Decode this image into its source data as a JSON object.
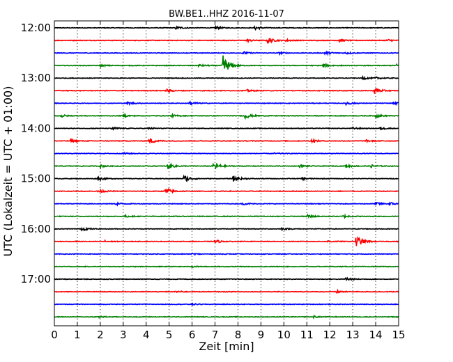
{
  "chart_data": {
    "type": "line",
    "title": "BW.BE1..HHZ 2016-11-07",
    "xlabel": "Zeit  [min]",
    "ylabel": "UTC (Lokalzeit = UTC + 01:00)",
    "xlim": [
      0,
      15
    ],
    "x_ticks": [
      0,
      1,
      2,
      3,
      4,
      5,
      6,
      7,
      8,
      9,
      10,
      11,
      12,
      13,
      14,
      15
    ],
    "x_tick_labels": [
      "0",
      "1",
      "2",
      "3",
      "4",
      "5",
      "6",
      "7",
      "8",
      "9",
      "10",
      "11",
      "12",
      "13",
      "14",
      "15"
    ],
    "y_tick_labels": [
      "12:00",
      "13:00",
      "14:00",
      "15:00",
      "16:00",
      "17:00"
    ],
    "grid": true,
    "colors": [
      "#000000",
      "#ff0000",
      "#0000ff",
      "#008000"
    ],
    "traces": [
      {
        "start": "12:00",
        "color": "#000000",
        "events": [
          {
            "t": 5.3,
            "amp": 0.25
          },
          {
            "t": 7.0,
            "amp": 0.25
          },
          {
            "t": 8.75,
            "amp": 0.3
          }
        ]
      },
      {
        "start": "12:15",
        "color": "#ff0000",
        "events": [
          {
            "t": 8.4,
            "amp": 0.2
          },
          {
            "t": 9.3,
            "amp": 0.45
          },
          {
            "t": 10.1,
            "amp": 0.15
          },
          {
            "t": 12.4,
            "amp": 0.2
          },
          {
            "t": 14.5,
            "amp": 0.2
          }
        ]
      },
      {
        "start": "12:30",
        "color": "#0000ff",
        "events": [
          {
            "t": 8.2,
            "amp": 0.25
          },
          {
            "t": 9.8,
            "amp": 0.15
          },
          {
            "t": 11.8,
            "amp": 0.3
          },
          {
            "t": 12.7,
            "amp": 0.15
          }
        ]
      },
      {
        "start": "12:45",
        "color": "#008000",
        "events": [
          {
            "t": 2.0,
            "amp": 0.15
          },
          {
            "t": 6.3,
            "amp": 0.2
          },
          {
            "t": 7.35,
            "amp": 1.6
          },
          {
            "t": 11.7,
            "amp": 0.3
          },
          {
            "t": 14.9,
            "amp": 0.2
          }
        ]
      },
      {
        "start": "13:00",
        "color": "#000000",
        "events": [
          {
            "t": 13.4,
            "amp": 0.25
          },
          {
            "t": 14.0,
            "amp": 0.15
          }
        ]
      },
      {
        "start": "13:15",
        "color": "#ff0000",
        "events": [
          {
            "t": 4.9,
            "amp": 0.25
          },
          {
            "t": 8.4,
            "amp": 0.15
          },
          {
            "t": 13.95,
            "amp": 0.5
          }
        ]
      },
      {
        "start": "13:30",
        "color": "#0000ff",
        "events": [
          {
            "t": 3.2,
            "amp": 0.2
          },
          {
            "t": 5.9,
            "amp": 0.3
          },
          {
            "t": 12.7,
            "amp": 0.3
          },
          {
            "t": 14.8,
            "amp": 0.2
          }
        ]
      },
      {
        "start": "13:45",
        "color": "#008000",
        "events": [
          {
            "t": 0.3,
            "amp": 0.2
          },
          {
            "t": 3.0,
            "amp": 0.2
          },
          {
            "t": 5.1,
            "amp": 0.2
          },
          {
            "t": 8.3,
            "amp": 0.45
          },
          {
            "t": 14.0,
            "amp": 0.25
          }
        ]
      },
      {
        "start": "14:00",
        "color": "#000000",
        "events": [
          {
            "t": 2.5,
            "amp": 0.25
          },
          {
            "t": 4.1,
            "amp": 0.15
          },
          {
            "t": 13.0,
            "amp": 0.15
          },
          {
            "t": 14.2,
            "amp": 0.2
          }
        ]
      },
      {
        "start": "14:15",
        "color": "#ff0000",
        "events": [
          {
            "t": 0.7,
            "amp": 0.2
          },
          {
            "t": 4.15,
            "amp": 0.45
          },
          {
            "t": 11.2,
            "amp": 0.25
          },
          {
            "t": 13.6,
            "amp": 0.15
          }
        ]
      },
      {
        "start": "14:30",
        "color": "#0000ff",
        "events": [
          {
            "t": 3.0,
            "amp": 0.15
          },
          {
            "t": 9.6,
            "amp": 0.1
          }
        ]
      },
      {
        "start": "14:45",
        "color": "#008000",
        "events": [
          {
            "t": 2.0,
            "amp": 0.2
          },
          {
            "t": 4.95,
            "amp": 0.45
          },
          {
            "t": 6.95,
            "amp": 0.6
          },
          {
            "t": 10.7,
            "amp": 0.2
          },
          {
            "t": 12.7,
            "amp": 0.25
          },
          {
            "t": 13.8,
            "amp": 0.2
          }
        ]
      },
      {
        "start": "15:00",
        "color": "#000000",
        "events": [
          {
            "t": 1.9,
            "amp": 0.25
          },
          {
            "t": 5.65,
            "amp": 0.55
          },
          {
            "t": 7.8,
            "amp": 0.55
          },
          {
            "t": 10.8,
            "amp": 0.15
          }
        ]
      },
      {
        "start": "15:15",
        "color": "#ff0000",
        "events": [
          {
            "t": 1.9,
            "amp": 0.3
          },
          {
            "t": 4.85,
            "amp": 0.55
          }
        ]
      },
      {
        "start": "15:30",
        "color": "#0000ff",
        "events": [
          {
            "t": 2.7,
            "amp": 0.2
          },
          {
            "t": 8.2,
            "amp": 0.15
          },
          {
            "t": 14.0,
            "amp": 0.25
          },
          {
            "t": 14.6,
            "amp": 0.25
          }
        ]
      },
      {
        "start": "15:45",
        "color": "#008000",
        "events": [
          {
            "t": 3.1,
            "amp": 0.15
          },
          {
            "t": 11.0,
            "amp": 0.35
          },
          {
            "t": 12.6,
            "amp": 0.2
          }
        ]
      },
      {
        "start": "16:00",
        "color": "#000000",
        "events": [
          {
            "t": 1.2,
            "amp": 0.3
          },
          {
            "t": 9.9,
            "amp": 0.15
          }
        ]
      },
      {
        "start": "16:15",
        "color": "#ff0000",
        "events": [
          {
            "t": 2.2,
            "amp": 0.15
          },
          {
            "t": 7.0,
            "amp": 0.25
          },
          {
            "t": 11.9,
            "amp": 0.15
          },
          {
            "t": 13.15,
            "amp": 1.0
          }
        ]
      },
      {
        "start": "16:30",
        "color": "#0000ff",
        "events": [
          {
            "t": 6.0,
            "amp": 0.1
          }
        ]
      },
      {
        "start": "16:45",
        "color": "#008000",
        "events": [
          {
            "t": 6.0,
            "amp": 0.1
          }
        ]
      },
      {
        "start": "17:00",
        "color": "#000000",
        "events": [
          {
            "t": 12.7,
            "amp": 0.3
          }
        ]
      },
      {
        "start": "17:15",
        "color": "#ff0000",
        "events": [
          {
            "t": 5.3,
            "amp": 0.15
          },
          {
            "t": 12.3,
            "amp": 0.2
          }
        ]
      },
      {
        "start": "17:30",
        "color": "#0000ff",
        "events": [
          {
            "t": 6.0,
            "amp": 0.1
          }
        ]
      },
      {
        "start": "17:45",
        "color": "#008000",
        "events": [
          {
            "t": 1.9,
            "amp": 0.15
          },
          {
            "t": 11.3,
            "amp": 0.15
          }
        ]
      }
    ]
  }
}
